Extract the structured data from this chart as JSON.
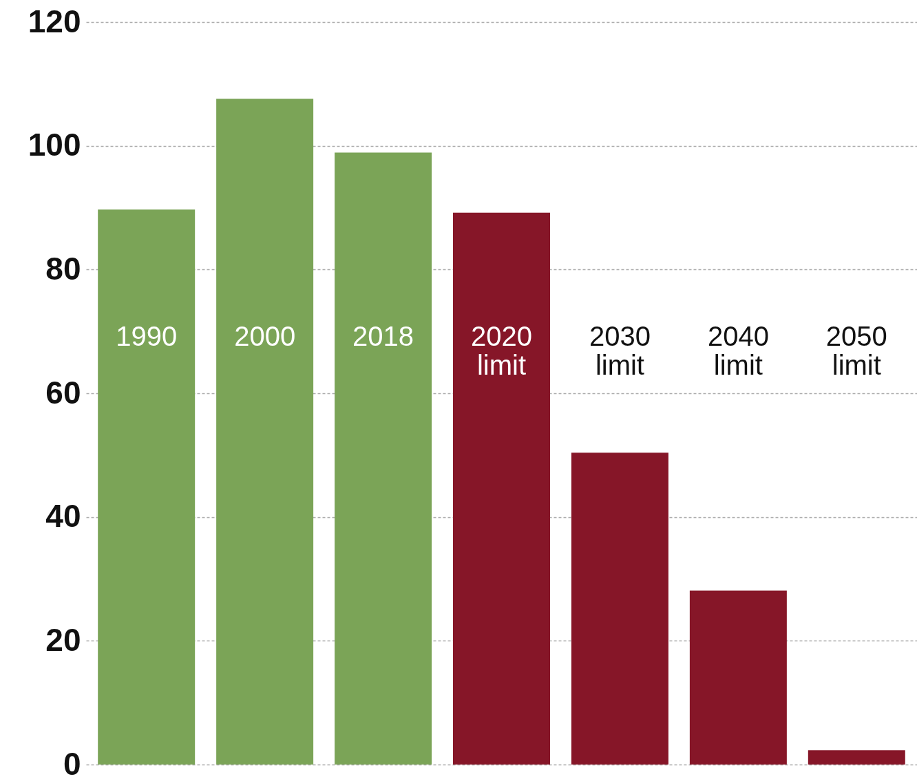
{
  "chart_data": {
    "type": "bar",
    "categories": [
      "1990",
      "2000",
      "2018",
      "2020 limit",
      "2030 limit",
      "2040 limit",
      "2050 limit"
    ],
    "values": [
      89.7,
      107.6,
      98.9,
      89.2,
      50.4,
      28.1,
      2.3
    ],
    "colors": [
      "#7ba457",
      "#7ba457",
      "#7ba457",
      "#861628",
      "#861628",
      "#861628",
      "#861628"
    ],
    "ylim": [
      0,
      120
    ],
    "yticks": [
      0,
      20,
      40,
      60,
      80,
      100,
      120
    ],
    "grid": "y"
  }
}
